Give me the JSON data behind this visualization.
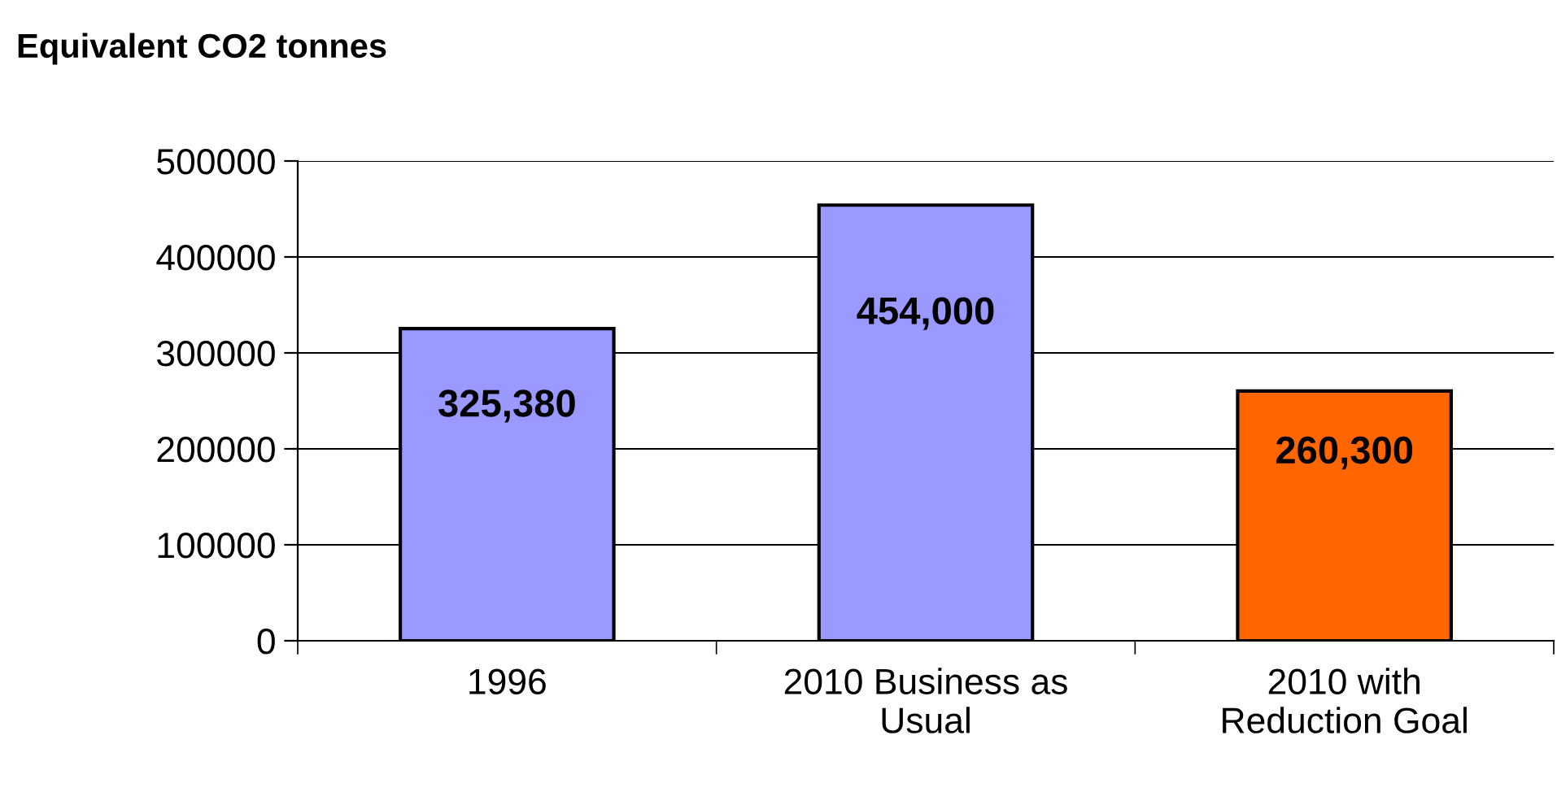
{
  "chart_data": {
    "type": "bar",
    "title": "Equivalent CO2 tonnes",
    "categories": [
      "1996",
      "2010 Business as\nUsual",
      "2010 with\nReduction Goal"
    ],
    "values": [
      325380,
      454000,
      260300
    ],
    "colors": [
      "#9999ff",
      "#9999ff",
      "#ff6600"
    ],
    "value_labels": [
      "325,380",
      "454,000",
      "260,300"
    ],
    "ylim": [
      0,
      500000
    ],
    "yticks": [
      0,
      100000,
      200000,
      300000,
      400000,
      500000
    ],
    "grid": "y"
  }
}
